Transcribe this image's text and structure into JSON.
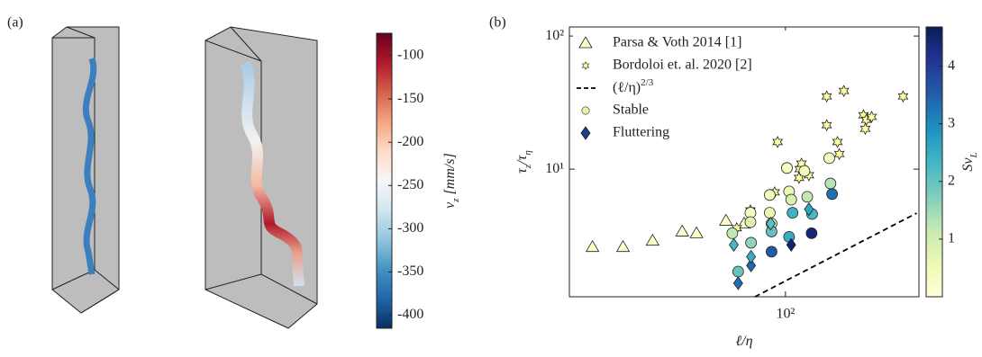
{
  "chart_data": [
    {
      "type": "colorbar",
      "panel_label": "(a)",
      "label": [
        "v",
        "z",
        " [mm/s]"
      ],
      "clim": [
        -415,
        -74
      ],
      "ticks": [
        -100,
        -150,
        -200,
        -250,
        -300,
        -350,
        -400
      ],
      "colormap": [
        "#053061",
        "#2166ac",
        "#4393c3",
        "#92c5de",
        "#d1e5f0",
        "#f7f7f7",
        "#fddbc7",
        "#f4a582",
        "#d6604d",
        "#b2182b",
        "#67001f"
      ]
    },
    {
      "type": "scatter",
      "panel_label": "(b)",
      "xlabel": [
        "ℓ/η"
      ],
      "ylabel": [
        "τ",
        "z",
        "/τ",
        "η"
      ],
      "xscale": "log",
      "yscale": "log",
      "xlim": [
        5.5,
        600
      ],
      "ylim": [
        1.1,
        117
      ],
      "xticks": [
        {
          "value": 100,
          "label": "10²"
        }
      ],
      "yticks": [
        {
          "value": 10,
          "label": "10¹"
        },
        {
          "value": 100,
          "label": "10²"
        }
      ],
      "legend": "upper left",
      "colorbar": {
        "label": [
          "Sv",
          "L"
        ],
        "clim": [
          0,
          4.68
        ],
        "ticks": [
          1,
          2,
          3,
          4
        ],
        "colormap": [
          "#ffffd9",
          "#edf8b1",
          "#c7e9b4",
          "#7fcdbb",
          "#41b6c4",
          "#1d91c0",
          "#225ea8",
          "#253494",
          "#081d58"
        ]
      },
      "series": [
        {
          "name": "Parsa & Voth 2014 [1]",
          "marker": "triangle",
          "color": "#ffffcc",
          "x": [
            7.5,
            11.3,
            16.8,
            25,
            30.3,
            45,
            57.4
          ],
          "values": [
            2.6,
            2.6,
            2.9,
            3.4,
            3.3,
            4.1,
            3.9
          ]
        },
        {
          "name": "Bordoloi et. al. 2020 [2]",
          "marker": "hexagram",
          "color": "#ffffa0",
          "x": [
            52,
            62.5,
            90,
            86.5,
            121,
            124,
            137,
            120,
            174,
            219,
            174,
            201,
            206,
            285,
            296,
            292,
            318,
            485
          ],
          "values": [
            3.6,
            4.9,
            16,
            6.7,
            10,
            11,
            9.0,
            8.6,
            35.2,
            38.7,
            21.4,
            16,
            13,
            25.4,
            23.5,
            20.1,
            24.7,
            35.2
          ]
        },
        {
          "name": [
            "(ℓ/η)",
            "2/3"
          ],
          "marker": "dashed-line",
          "color": "#000000",
          "x": [
            66.4,
            582
          ],
          "values": [
            1.1,
            4.67
          ]
        },
        {
          "name": "Stable",
          "marker": "circle",
          "color": "#e6f5a8",
          "x": [
            62.5,
            49,
            62.5,
            63,
            81,
            81,
            83,
            83,
            105,
            108,
            102,
            110,
            105,
            134,
            129,
            143,
            180,
            183,
            187,
            53,
            83,
            142
          ],
          "values": [
            4.7,
            3.3,
            4.0,
            2.8,
            4.7,
            6.4,
            3.9,
            3.4,
            6.8,
            5.9,
            10.2,
            4.7,
            3.1,
            6.2,
            9.7,
            4.6,
            12.1,
            7.8,
            6.5,
            1.7,
            2.4,
            3.3
          ],
          "c": [
            0.3,
            1.2,
            0.8,
            1.6,
            0.6,
            0.4,
            1.0,
            2.0,
            0.6,
            0.9,
            0.3,
            2.4,
            2.5,
            1.2,
            0.4,
            2.3,
            0.3,
            1.3,
            3.3,
            2.0,
            3.6,
            4.4
          ]
        },
        {
          "name": "Fluttering",
          "marker": "diamond",
          "color": "#1f3c88",
          "x": [
            53,
            63,
            63,
            50,
            82,
            108,
            137
          ],
          "values": [
            1.39,
            1.89,
            2.2,
            2.7,
            3.9,
            2.7,
            5.0
          ],
          "c": [
            3.3,
            3.4,
            2.5,
            2.3,
            2.1,
            4.5,
            2.6
          ]
        }
      ]
    }
  ]
}
